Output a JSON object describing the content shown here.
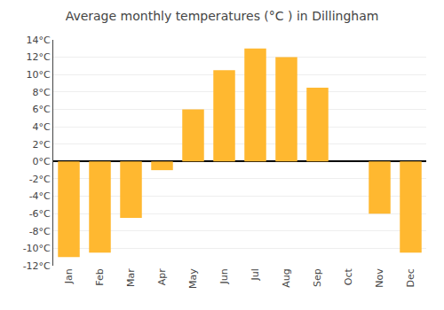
{
  "chart_data": {
    "type": "bar",
    "title": "Average monthly temperatures (°C ) in Dillingham",
    "categories": [
      "Jan",
      "Feb",
      "Mar",
      "Apr",
      "May",
      "Jun",
      "Jul",
      "Aug",
      "Sep",
      "Oct",
      "Nov",
      "Dec"
    ],
    "values": [
      -11,
      -10.5,
      -6.5,
      -1,
      6,
      10.5,
      13,
      12,
      8.5,
      0,
      -6,
      -10.5
    ],
    "color": "#FFB830",
    "ylim": [
      -12,
      14
    ],
    "yticks": [
      {
        "value": -12,
        "label": "-12°C"
      },
      {
        "value": -10,
        "label": "-10°C"
      },
      {
        "value": -8,
        "label": "-8°C"
      },
      {
        "value": -6,
        "label": "-6°C"
      },
      {
        "value": -4,
        "label": "-4°C"
      },
      {
        "value": -2,
        "label": "-2°C"
      },
      {
        "value": 0,
        "label": "0°C"
      },
      {
        "value": 2,
        "label": "2°C"
      },
      {
        "value": 4,
        "label": "4°C"
      },
      {
        "value": 6,
        "label": "6°C"
      },
      {
        "value": 8,
        "label": "8°C"
      },
      {
        "value": 10,
        "label": "10°C"
      },
      {
        "value": 12,
        "label": "12°C"
      },
      {
        "value": 14,
        "label": "14°C"
      }
    ],
    "grid": true
  }
}
